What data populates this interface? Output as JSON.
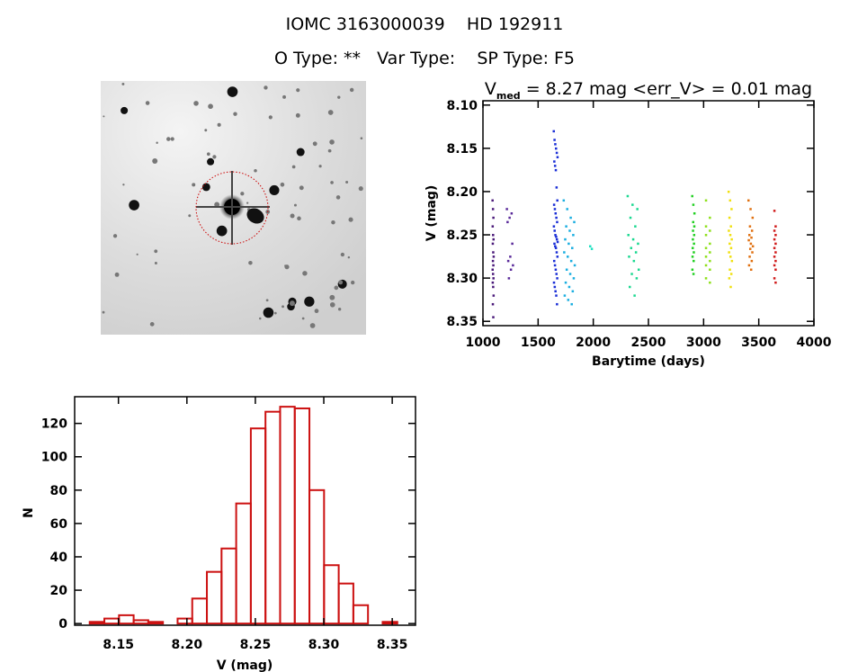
{
  "header": {
    "title": "IOMC 3163000039    HD 192911",
    "subtitle": "O Type: **   Var Type:    SP Type: F5"
  },
  "image": {
    "description_icon": "sky-field-image",
    "circle_color": "#cc0000"
  },
  "chart_data": [
    {
      "type": "scatter",
      "title_main": "V",
      "title_sub": "med",
      "title_rest": " = 8.27 mag <err_V> = 0.01 mag",
      "xlabel": "Barytime (days)",
      "ylabel": "V (mag)",
      "xlim": [
        1000,
        4000
      ],
      "ylim": [
        8.095,
        8.355
      ],
      "y_reversed": true,
      "xticks": [
        1000,
        1500,
        2000,
        2500,
        3000,
        3500,
        4000
      ],
      "xtick_labels": [
        "1000",
        "1500",
        "2000",
        "2500",
        "3000",
        "3500",
        "4000"
      ],
      "yticks": [
        8.1,
        8.15,
        8.2,
        8.25,
        8.3,
        8.35
      ],
      "ytick_labels": [
        "8.10",
        "8.15",
        "8.20",
        "8.25",
        "8.30",
        "8.35"
      ],
      "series": [
        {
          "color": "#4b1a7a",
          "x": [
            1085,
            1095
          ],
          "v": [
            8.21,
            8.22,
            8.23,
            8.24,
            8.25,
            8.255,
            8.26,
            8.27,
            8.275,
            8.28,
            8.285,
            8.29,
            8.295,
            8.3,
            8.305,
            8.31,
            8.32,
            8.33,
            8.345
          ]
        },
        {
          "color": "#5a2a9a",
          "x": [
            1215,
            1270
          ],
          "v": [
            8.22,
            8.225,
            8.23,
            8.235,
            8.26,
            8.275,
            8.28,
            8.285,
            8.29,
            8.3
          ]
        },
        {
          "color": "#1a2ed6",
          "x": [
            1640,
            1675
          ],
          "v": [
            8.13,
            8.14,
            8.145,
            8.15,
            8.155,
            8.16,
            8.165,
            8.17,
            8.175,
            8.195,
            8.21,
            8.215,
            8.22,
            8.225,
            8.23,
            8.235,
            8.24,
            8.245,
            8.25,
            8.252,
            8.255,
            8.258,
            8.26,
            8.263,
            8.265,
            8.27,
            8.275,
            8.28,
            8.285,
            8.29,
            8.295,
            8.3,
            8.305,
            8.31,
            8.315,
            8.32,
            8.33
          ]
        },
        {
          "color": "#1aaee0",
          "x": [
            1730,
            1830
          ],
          "v": [
            8.21,
            8.22,
            8.23,
            8.235,
            8.24,
            8.245,
            8.25,
            8.255,
            8.26,
            8.265,
            8.27,
            8.275,
            8.28,
            8.285,
            8.29,
            8.295,
            8.3,
            8.305,
            8.31,
            8.315,
            8.32,
            8.325,
            8.33
          ]
        },
        {
          "color": "#1ae0c0",
          "x": [
            1970,
            1985
          ],
          "v": [
            8.263,
            8.266
          ]
        },
        {
          "color": "#1ad890",
          "x": [
            2310,
            2410
          ],
          "v": [
            8.205,
            8.215,
            8.22,
            8.23,
            8.24,
            8.25,
            8.255,
            8.26,
            8.265,
            8.27,
            8.275,
            8.28,
            8.29,
            8.295,
            8.3,
            8.31,
            8.32
          ]
        },
        {
          "color": "#22d022",
          "x": [
            2895,
            2915
          ],
          "v": [
            8.205,
            8.215,
            8.225,
            8.235,
            8.24,
            8.245,
            8.25,
            8.255,
            8.26,
            8.265,
            8.27,
            8.275,
            8.28,
            8.29,
            8.295
          ]
        },
        {
          "color": "#8ee01a",
          "x": [
            3020,
            3085
          ],
          "v": [
            8.21,
            8.23,
            8.24,
            8.245,
            8.25,
            8.26,
            8.265,
            8.27,
            8.275,
            8.28,
            8.285,
            8.29,
            8.3,
            8.305
          ]
        },
        {
          "color": "#f0e010",
          "x": [
            3225,
            3255
          ],
          "v": [
            8.2,
            8.21,
            8.22,
            8.23,
            8.24,
            8.245,
            8.25,
            8.255,
            8.26,
            8.265,
            8.27,
            8.275,
            8.28,
            8.29,
            8.295,
            8.3,
            8.31
          ]
        },
        {
          "color": "#e07010",
          "x": [
            3405,
            3445
          ],
          "v": [
            8.21,
            8.22,
            8.23,
            8.24,
            8.245,
            8.25,
            8.253,
            8.256,
            8.26,
            8.263,
            8.266,
            8.27,
            8.275,
            8.28,
            8.285,
            8.29
          ]
        },
        {
          "color": "#d01a1a",
          "x": [
            3640,
            3660
          ],
          "v": [
            8.222,
            8.24,
            8.245,
            8.25,
            8.255,
            8.26,
            8.265,
            8.27,
            8.275,
            8.28,
            8.285,
            8.29,
            8.3,
            8.305
          ]
        }
      ]
    },
    {
      "type": "bar",
      "subtype": "histogram",
      "xlabel": "V (mag)",
      "ylabel": "N",
      "xlim": [
        8.118,
        8.367
      ],
      "ylim": [
        -1,
        136
      ],
      "bar_color": "#cc1111",
      "bin_start": 8.129,
      "bin_width": 0.0107,
      "counts": [
        1,
        3,
        5,
        2,
        1,
        0,
        3,
        15,
        31,
        45,
        72,
        117,
        127,
        130,
        129,
        80,
        35,
        24,
        11,
        0,
        1
      ],
      "xticks": [
        8.15,
        8.2,
        8.25,
        8.3,
        8.35
      ],
      "xtick_labels": [
        "8.15",
        "8.20",
        "8.25",
        "8.30",
        "8.35"
      ],
      "yticks": [
        0,
        20,
        40,
        60,
        80,
        100,
        120
      ],
      "ytick_labels": [
        "0",
        "20",
        "40",
        "60",
        "80",
        "100",
        "120"
      ]
    }
  ]
}
